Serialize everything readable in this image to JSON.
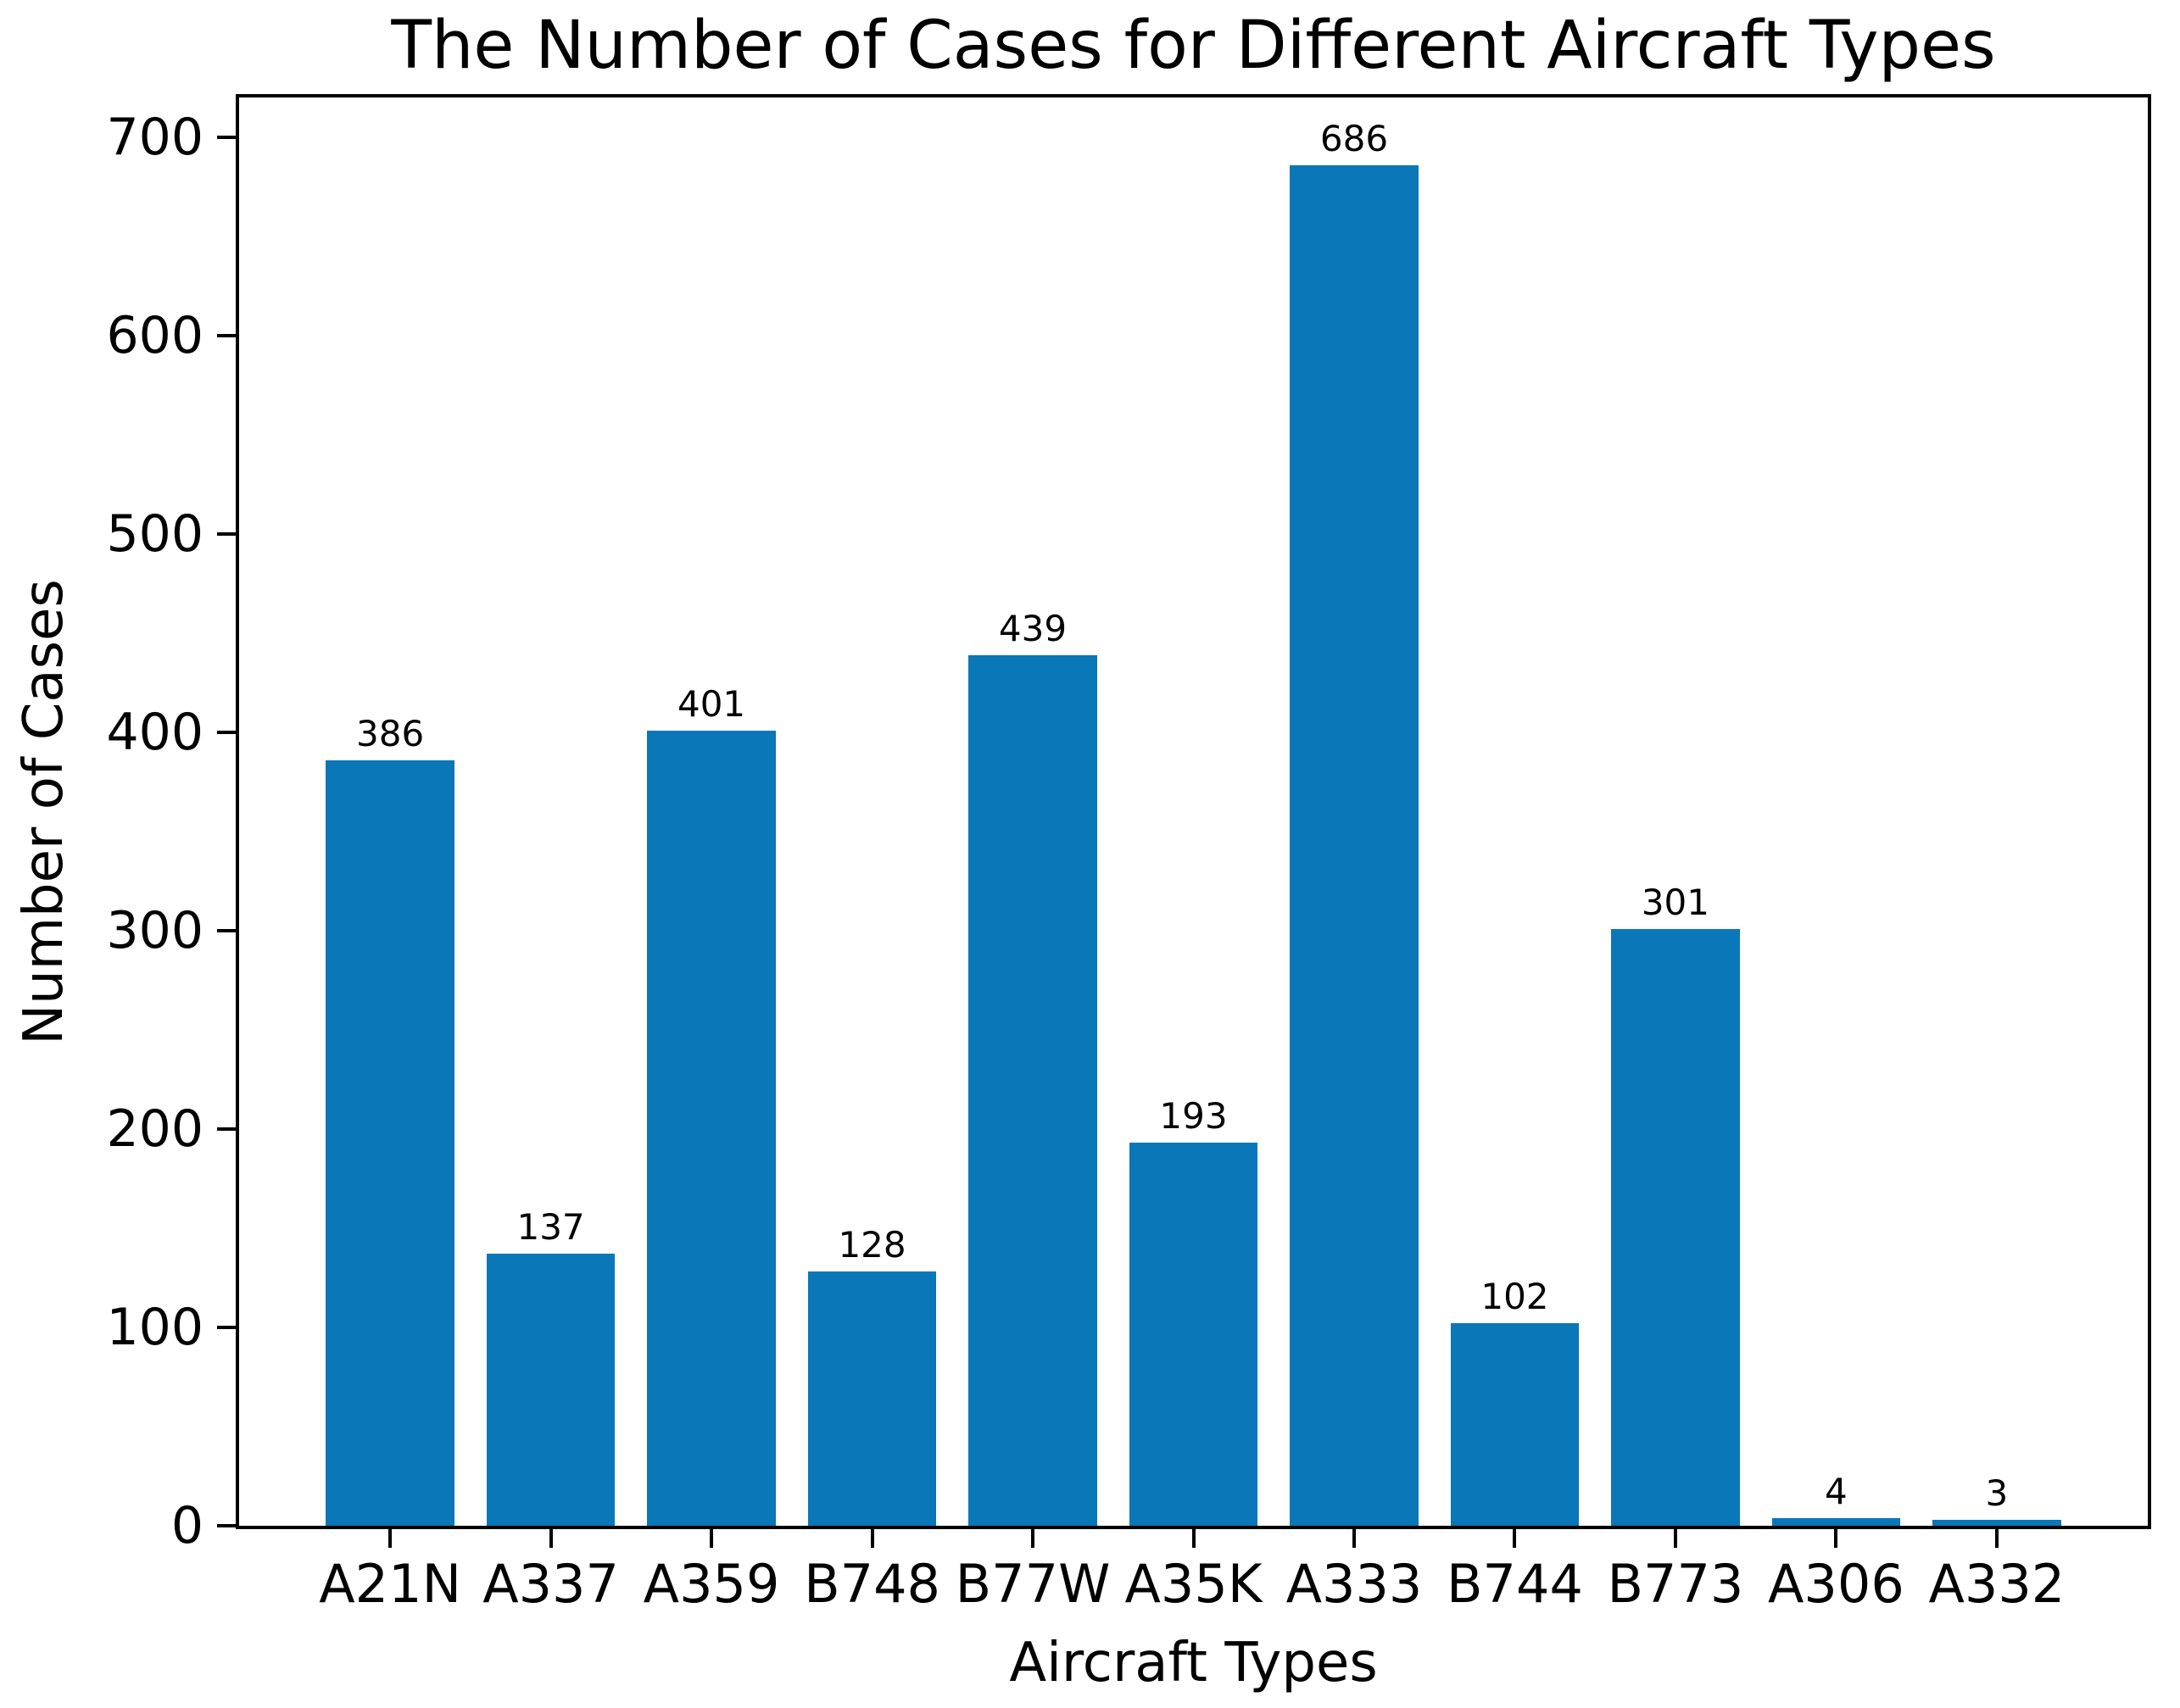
{
  "chart_data": {
    "type": "bar",
    "title": "The Number of Cases for Different Aircraft Types",
    "xlabel": "Aircraft Types",
    "ylabel": "Number of Cases",
    "categories": [
      "A21N",
      "A337",
      "A359",
      "B748",
      "B77W",
      "A35K",
      "A333",
      "B744",
      "B773",
      "A306",
      "A332"
    ],
    "values": [
      386,
      137,
      401,
      128,
      439,
      193,
      686,
      102,
      301,
      4,
      3
    ],
    "value_labels": [
      "386",
      "137",
      "401",
      "128",
      "439",
      "193",
      "686",
      "102",
      "301",
      "4",
      "3"
    ],
    "yticks": [
      0,
      100,
      200,
      300,
      400,
      500,
      600,
      700
    ],
    "ytick_labels": [
      "0",
      "100",
      "200",
      "300",
      "400",
      "500",
      "600",
      "700"
    ],
    "ylim": [
      0,
      720
    ],
    "bar_color": "#0a77b8",
    "axis_color": "#000000",
    "grid": false,
    "legend": null
  }
}
